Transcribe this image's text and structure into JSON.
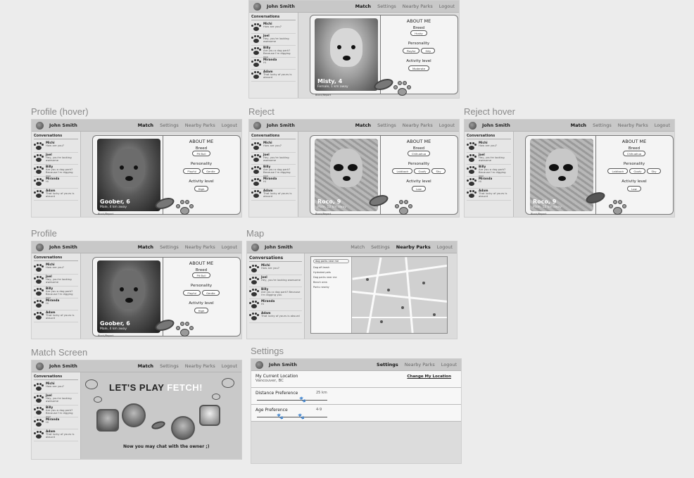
{
  "user": "John Smith",
  "nav": {
    "match": "Match",
    "settings": "Settings",
    "parks": "Nearby Parks",
    "logout": "Logout"
  },
  "conversations_title": "Conversations",
  "conversations": [
    {
      "name": "Michi",
      "msg": "How are you?"
    },
    {
      "name": "Joel",
      "msg": "Hey, you're looking awesome"
    },
    {
      "name": "Billy",
      "msg": "Are you a dog park? Because I'm digging you"
    },
    {
      "name": "Miranda",
      "msg": "Hi"
    },
    {
      "name": "Adam",
      "msg": "That lucky of yours is absurd"
    }
  ],
  "frames": {
    "profile_hover": "Profile (hover)",
    "reject": "Reject",
    "reject_hover": "Reject hover",
    "profile": "Profile",
    "map": "Map",
    "match_screen": "Match Screen",
    "settings": "Settings"
  },
  "about": {
    "title": "ABOUT ME",
    "breed": "Breed",
    "personality": "Personality",
    "activity": "Activity level"
  },
  "dogs": {
    "misty": {
      "name": "Misty, 4",
      "sub": "Female, 1 km away",
      "breed": "Husky",
      "traits": [
        "Playful",
        "Silly"
      ],
      "activity": "Moderate"
    },
    "goober": {
      "name": "Goober, 6",
      "sub": "Male, 4 km away",
      "breed": "Pit Bull",
      "traits": [
        "Playful",
        "Gentle"
      ],
      "activity": "High"
    },
    "roco": {
      "name": "Roco, 9",
      "sub": "Male, 12 km away",
      "breed": "Chihuahua",
      "traits": [
        "Laidback",
        "Goofy",
        "Shy"
      ],
      "activity": "Low"
    }
  },
  "block_report": "Block/Report",
  "map_panel": {
    "search": "dog parks near me",
    "items": [
      "Dog off-leash",
      "Hydrated pets",
      "Dog parks near me",
      "Beach area",
      "Parks nearby"
    ]
  },
  "settings_page": {
    "location_label": "My Current Location",
    "location_value": "Vancouver, BC",
    "change_location": "Change My Location",
    "distance_label": "Distance Preference",
    "distance_value": "25 km",
    "distance_fraction": 0.6,
    "age_label": "Age Preference",
    "age_value": "4-9",
    "age_range_fraction": [
      0.3,
      0.6
    ]
  },
  "match_screen": {
    "headline_a": "LET'S PLAY ",
    "headline_b": "FETCH!",
    "message": "Now you may chat with the owner ;)"
  }
}
